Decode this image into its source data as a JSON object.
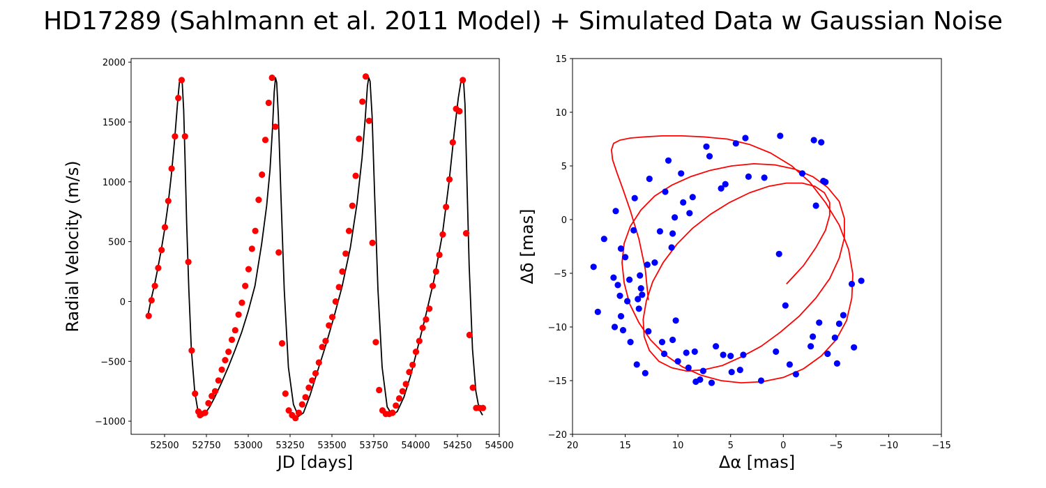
{
  "figure": {
    "title": "HD17289 (Sahlmann et al. 2011 Model) + Simulated Data w Gaussian Noise"
  },
  "chart_data": [
    {
      "type": "line",
      "xlabel": "JD [days]",
      "ylabel": "Radial Velocity (m/s)",
      "xlim": [
        52300,
        54500
      ],
      "ylim": [
        -1110,
        2030
      ],
      "xticks": [
        52500,
        52750,
        53000,
        53250,
        53500,
        53750,
        54000,
        54250,
        54500
      ],
      "xtick_labels": [
        "52500",
        "52750",
        "53000",
        "53250",
        "53500",
        "53750",
        "54000",
        "54250",
        "54500"
      ],
      "yticks": [
        -1000,
        -500,
        0,
        500,
        1000,
        1500,
        2000
      ],
      "ytick_labels": [
        "−1000",
        "−500",
        "0",
        "500",
        "1000",
        "1500",
        "2000"
      ],
      "grid": false,
      "series": [
        {
          "kind": "line",
          "color": "#000000",
          "x": [
            52400,
            52420,
            52440,
            52460,
            52480,
            52500,
            52520,
            52540,
            52560,
            52580,
            52590,
            52598,
            52606,
            52614,
            52622,
            52632,
            52645,
            52660,
            52680,
            52700,
            52720,
            52740,
            52770,
            52800,
            52840,
            52880,
            52920,
            52960,
            53000,
            53040,
            53080,
            53110,
            53130,
            53145,
            53155,
            53163,
            53170,
            53180,
            53195,
            53215,
            53240,
            53270,
            53300,
            53330,
            53370,
            53410,
            53460,
            53510,
            53560,
            53610,
            53650,
            53680,
            53700,
            53712,
            53720,
            53728,
            53740,
            53755,
            53775,
            53800,
            53830,
            53860,
            53890,
            53930,
            53970,
            54010,
            54060,
            54110,
            54160,
            54200,
            54230,
            54255,
            54270,
            54280,
            54287,
            54295,
            54305,
            54320,
            54340,
            54360,
            54380,
            54400
          ],
          "y": [
            -120,
            20,
            140,
            280,
            430,
            600,
            800,
            1050,
            1350,
            1700,
            1850,
            1870,
            1820,
            1600,
            1200,
            650,
            100,
            -400,
            -750,
            -920,
            -950,
            -940,
            -880,
            -800,
            -680,
            -550,
            -410,
            -260,
            -80,
            130,
            480,
            800,
            1100,
            1450,
            1750,
            1870,
            1830,
            1550,
            900,
            100,
            -550,
            -860,
            -960,
            -930,
            -780,
            -600,
            -380,
            -140,
            120,
            450,
            820,
            1200,
            1550,
            1800,
            1870,
            1840,
            1550,
            900,
            100,
            -550,
            -880,
            -950,
            -920,
            -800,
            -620,
            -400,
            -120,
            180,
            560,
            1000,
            1400,
            1700,
            1830,
            1860,
            1830,
            1650,
            1100,
            300,
            -400,
            -750,
            -900,
            -950
          ]
        },
        {
          "kind": "scatter",
          "color": "#ff0000",
          "x": [
            52405,
            52422,
            52442,
            52462,
            52482,
            52502,
            52522,
            52542,
            52562,
            52582,
            52602,
            52622,
            52642,
            52662,
            52682,
            52702,
            52712,
            52722,
            52742,
            52762,
            52782,
            52802,
            52822,
            52842,
            52862,
            52882,
            52902,
            52922,
            52942,
            52962,
            52982,
            53002,
            53022,
            53042,
            53062,
            53082,
            53102,
            53122,
            53142,
            53162,
            53182,
            53202,
            53222,
            53242,
            53262,
            53282,
            53302,
            53322,
            53342,
            53362,
            53382,
            53402,
            53422,
            53442,
            53462,
            53482,
            53502,
            53522,
            53542,
            53562,
            53582,
            53602,
            53622,
            53642,
            53662,
            53682,
            53702,
            53722,
            53742,
            53762,
            53782,
            53802,
            53822,
            53842,
            53862,
            53882,
            53902,
            53922,
            53942,
            53962,
            53982,
            54002,
            54022,
            54042,
            54062,
            54082,
            54102,
            54122,
            54142,
            54162,
            54182,
            54202,
            54222,
            54242,
            54262,
            54282,
            54302,
            54322,
            54342,
            54362,
            54382,
            54402
          ],
          "y": [
            -120,
            10,
            130,
            280,
            430,
            620,
            840,
            1110,
            1380,
            1700,
            1850,
            1380,
            330,
            -410,
            -770,
            -920,
            -950,
            -940,
            -930,
            -850,
            -790,
            -750,
            -660,
            -570,
            -490,
            -420,
            -320,
            -240,
            -110,
            -10,
            130,
            270,
            440,
            590,
            850,
            1060,
            1350,
            1660,
            1870,
            1460,
            410,
            -350,
            -770,
            -910,
            -950,
            -975,
            -930,
            -860,
            -800,
            -720,
            -660,
            -600,
            -510,
            -380,
            -330,
            -200,
            -130,
            0,
            120,
            250,
            400,
            590,
            800,
            1050,
            1360,
            1670,
            1880,
            1510,
            490,
            -340,
            -740,
            -910,
            -940,
            -940,
            -930,
            -870,
            -810,
            -750,
            -690,
            -590,
            -530,
            -420,
            -330,
            -220,
            -150,
            -60,
            130,
            250,
            390,
            560,
            790,
            1020,
            1330,
            1610,
            1590,
            1850,
            570,
            -280,
            -720,
            -890,
            -890,
            -890
          ]
        }
      ]
    },
    {
      "type": "scatter",
      "xlabel": "Δα [mas]",
      "ylabel": "Δδ [mas]",
      "xlim": [
        20,
        -15
      ],
      "ylim": [
        -20,
        15
      ],
      "xticks": [
        20,
        15,
        10,
        5,
        0,
        -5,
        -10,
        -15
      ],
      "xtick_labels": [
        "20",
        "15",
        "10",
        "5",
        "0",
        "−5",
        "−10",
        "−15"
      ],
      "yticks": [
        -20,
        -15,
        -10,
        -5,
        0,
        5,
        10,
        15
      ],
      "ytick_labels": [
        "−20",
        "−15",
        "−10",
        "−5",
        "0",
        "5",
        "10",
        "15"
      ],
      "grid": false,
      "series": [
        {
          "kind": "line",
          "color": "#ff0000",
          "x": [
            12.8,
            13.1,
            13.7,
            14.5,
            15.2,
            15.8,
            16.2,
            16.3,
            16.1,
            15.5,
            14.5,
            13.2,
            11.5,
            9.6,
            7.5,
            5.3,
            3.2,
            1.2,
            -0.8,
            -2.5,
            -4.0,
            -5.3,
            -6.2,
            -6.6,
            -6.5,
            -6.0,
            -5.0,
            -3.6,
            -1.9,
            0.0,
            2.0,
            4.0,
            5.9,
            7.8,
            9.6,
            11.2,
            12.6,
            13.7,
            14.6,
            15.1,
            15.3,
            15.1,
            14.5,
            13.5,
            12.2,
            10.6,
            8.8,
            6.9,
            4.9,
            2.8,
            0.8,
            -1.1,
            -2.8,
            -4.2,
            -5.3,
            -5.8,
            -5.8,
            -5.3,
            -4.4,
            -3.1,
            -1.5,
            0.3,
            2.1,
            4.0,
            5.8,
            7.6,
            9.2,
            10.6,
            11.8,
            12.7,
            13.2,
            13.3,
            13.0,
            12.4,
            11.4,
            10.1,
            8.6,
            6.9,
            5.1,
            3.2,
            1.4,
            -0.3,
            -1.8,
            -3.0,
            -3.9,
            -4.4,
            -4.4,
            -4.0,
            -3.1,
            -1.9,
            -0.3
          ],
          "y": [
            -7.5,
            -4.6,
            -1.8,
            0.8,
            2.8,
            4.4,
            5.6,
            6.5,
            7.1,
            7.4,
            7.6,
            7.7,
            7.8,
            7.8,
            7.7,
            7.5,
            7.0,
            6.2,
            5.0,
            3.5,
            1.6,
            -0.5,
            -2.8,
            -5.1,
            -7.3,
            -9.4,
            -11.2,
            -12.7,
            -13.9,
            -14.7,
            -15.1,
            -15.2,
            -15.0,
            -14.5,
            -13.7,
            -12.6,
            -11.2,
            -9.6,
            -7.8,
            -5.9,
            -4.0,
            -2.2,
            -0.6,
            0.9,
            2.2,
            3.2,
            4.0,
            4.6,
            5.0,
            5.2,
            5.1,
            4.7,
            4.0,
            3.0,
            1.7,
            0.1,
            -1.7,
            -3.6,
            -5.5,
            -7.3,
            -9.0,
            -10.5,
            -11.8,
            -12.8,
            -13.6,
            -14.0,
            -14.1,
            -13.8,
            -13.2,
            -12.2,
            -10.9,
            -9.3,
            -7.6,
            -5.8,
            -4.0,
            -2.3,
            -0.8,
            0.5,
            1.6,
            2.5,
            3.1,
            3.4,
            3.4,
            3.1,
            2.5,
            1.6,
            0.4,
            -1.0,
            -2.6,
            -4.3,
            -6.0
          ]
        },
        {
          "kind": "scatter",
          "color": "#0000ff",
          "x": [
            18.0,
            17.0,
            17.6,
            16.1,
            16.0,
            15.9,
            15.7,
            15.5,
            15.4,
            15.2,
            15.4,
            15.0,
            14.8,
            14.5,
            14.6,
            14.2,
            14.1,
            13.9,
            13.8,
            13.7,
            13.6,
            13.5,
            13.4,
            13.1,
            12.9,
            12.8,
            12.7,
            12.2,
            11.7,
            11.5,
            11.3,
            11.2,
            10.9,
            10.6,
            10.5,
            10.5,
            10.3,
            10.2,
            10.0,
            9.7,
            9.5,
            9.2,
            9.0,
            8.9,
            8.6,
            8.4,
            8.3,
            7.9,
            7.6,
            7.3,
            7.0,
            6.8,
            6.4,
            5.9,
            5.7,
            5.5,
            5.0,
            4.9,
            4.5,
            4.1,
            3.8,
            3.6,
            3.3,
            2.1,
            1.8,
            0.7,
            0.3,
            -0.6,
            -1.2,
            -1.8,
            -2.6,
            -2.8,
            -2.9,
            -3.1,
            -3.4,
            -3.6,
            -3.8,
            -4.0,
            -4.2,
            -4.9,
            -5.1,
            -5.3,
            -5.7,
            -6.5,
            -6.7,
            -7.4,
            -0.2,
            0.4
          ],
          "y": [
            -4.4,
            -1.8,
            -8.6,
            -5.4,
            -10.0,
            0.8,
            -6.1,
            -7.1,
            -9.0,
            -10.3,
            -2.7,
            -3.5,
            -7.6,
            -11.4,
            -5.6,
            -1.0,
            2.0,
            -13.5,
            -7.4,
            -8.3,
            -5.2,
            -6.4,
            -7.0,
            -14.3,
            -4.2,
            -10.4,
            3.8,
            -4.0,
            -1.1,
            -11.4,
            -12.5,
            2.6,
            5.5,
            -2.6,
            -1.3,
            -11.2,
            0.2,
            -9.4,
            -13.2,
            4.3,
            1.6,
            -12.4,
            -13.8,
            0.6,
            2.1,
            -12.3,
            -15.1,
            -14.9,
            -14.1,
            6.8,
            5.9,
            -15.2,
            -11.8,
            2.9,
            -12.6,
            3.3,
            -12.7,
            -14.2,
            7.1,
            -14.0,
            -12.6,
            7.6,
            4.0,
            -15.0,
            3.9,
            -12.3,
            7.8,
            -13.5,
            -14.4,
            4.3,
            -11.8,
            -10.9,
            7.4,
            1.3,
            -9.6,
            7.2,
            3.6,
            3.5,
            -12.5,
            -11.0,
            -13.4,
            -9.7,
            -8.9,
            -6.0,
            -11.9,
            -5.7,
            -8.0,
            -3.2
          ]
        }
      ]
    }
  ]
}
